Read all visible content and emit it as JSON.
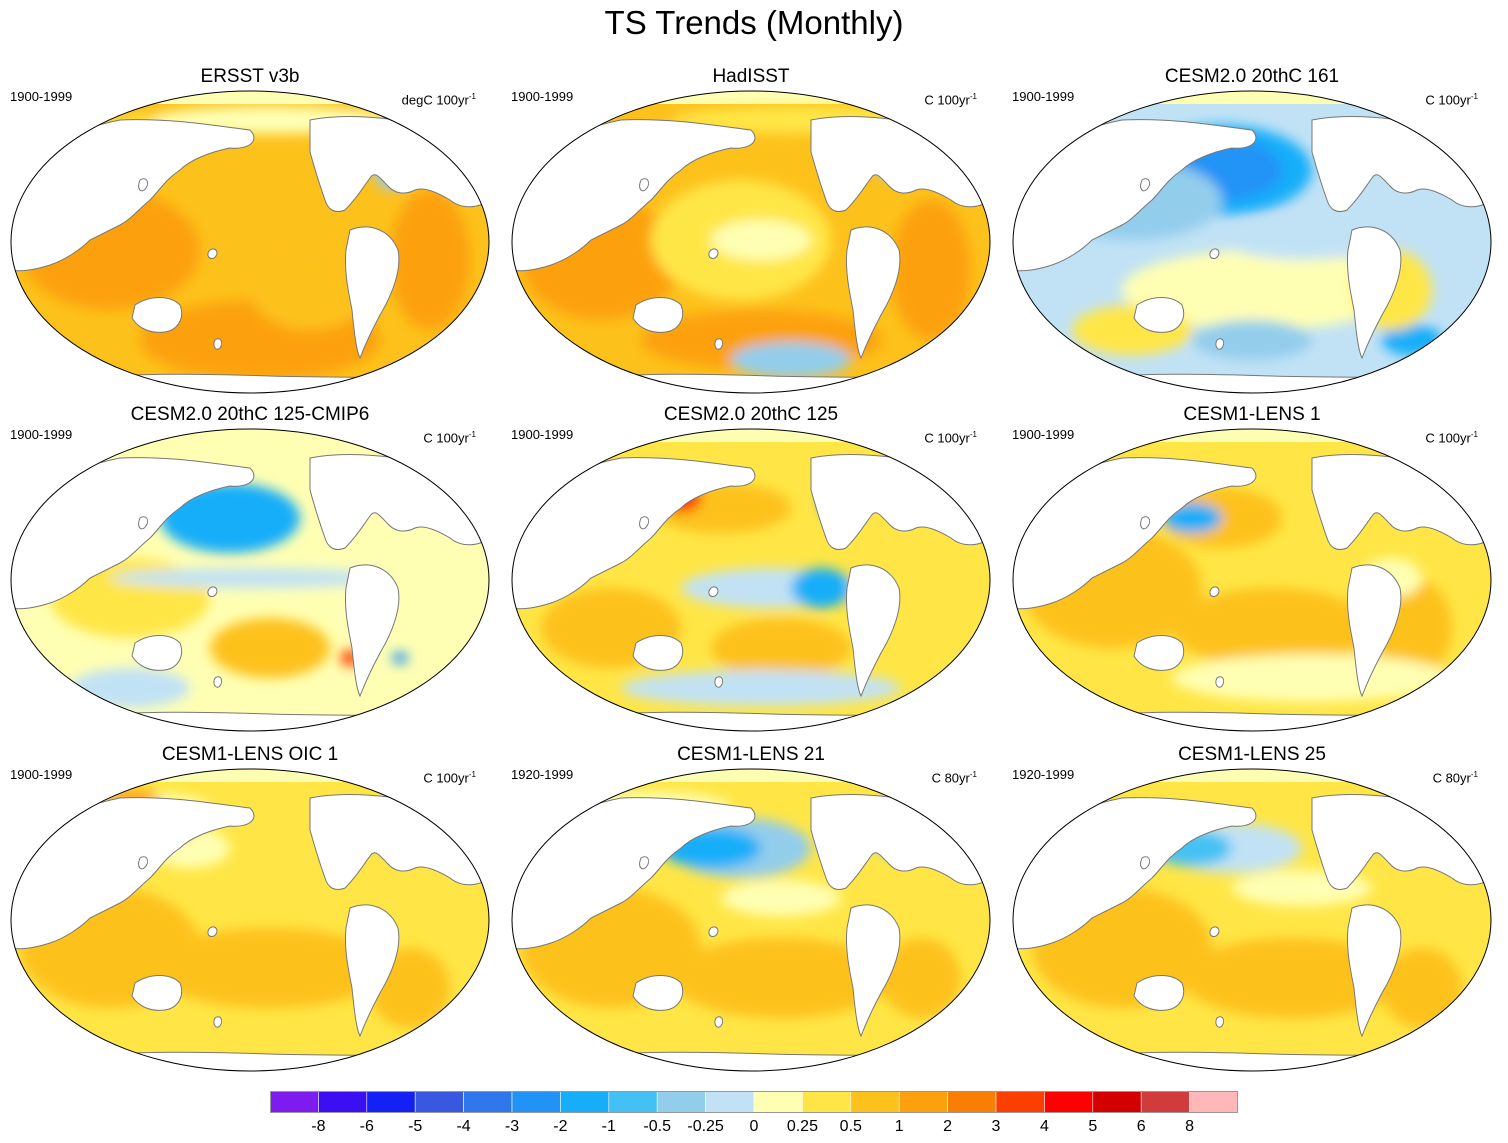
{
  "figure": {
    "title": "TS Trends (Monthly)"
  },
  "panels": [
    {
      "title": "ERSST v3b",
      "period": "1900-1999",
      "units_base": "degC 100yr",
      "units_exp": "-1",
      "pattern": "warm-obs"
    },
    {
      "title": "HadISST",
      "period": "1900-1999",
      "units_base": "C 100yr",
      "units_exp": "-1",
      "pattern": "warm-obs2"
    },
    {
      "title": "CESM2.0 20thC 161",
      "period": "1900-1999",
      "units_base": "C 100yr",
      "units_exp": "-1",
      "pattern": "cool"
    },
    {
      "title": "CESM2.0 20thC 125-CMIP6",
      "period": "1900-1999",
      "units_base": "C 100yr",
      "units_exp": "-1",
      "pattern": "mixed"
    },
    {
      "title": "CESM2.0 20thC 125",
      "period": "1900-1999",
      "units_base": "C 100yr",
      "units_exp": "-1",
      "pattern": "mixed2"
    },
    {
      "title": "CESM1-LENS 1",
      "period": "1900-1999",
      "units_base": "C 100yr",
      "units_exp": "-1",
      "pattern": "warm-model"
    },
    {
      "title": "CESM1-LENS OIC 1",
      "period": "1900-1999",
      "units_base": "C 100yr",
      "units_exp": "-1",
      "pattern": "warm-model2"
    },
    {
      "title": "CESM1-LENS 21",
      "period": "1920-1999",
      "units_base": "C 80yr",
      "units_exp": "-1",
      "pattern": "model21"
    },
    {
      "title": "CESM1-LENS 25",
      "period": "1920-1999",
      "units_base": "C 80yr",
      "units_exp": "-1",
      "pattern": "model25"
    }
  ],
  "colorbar": {
    "colors": [
      "#7e1cf0",
      "#3a0ff2",
      "#1421f4",
      "#3858e0",
      "#2f77ea",
      "#2193f7",
      "#17aef9",
      "#44c1f4",
      "#93cdec",
      "#c1e2f5",
      "#ffffb3",
      "#ffe646",
      "#fdc11c",
      "#fca10d",
      "#fb7e04",
      "#fb3f00",
      "#ff0000",
      "#d40000",
      "#d23b3b",
      "#ffb7b7"
    ],
    "labels": [
      "-8",
      "-6",
      "-5",
      "-4",
      "-3",
      "-2",
      "-1",
      "-0.5",
      "-0.25",
      "0",
      "0.25",
      "0.5",
      "1",
      "2",
      "3",
      "4",
      "5",
      "6",
      "8"
    ]
  }
}
